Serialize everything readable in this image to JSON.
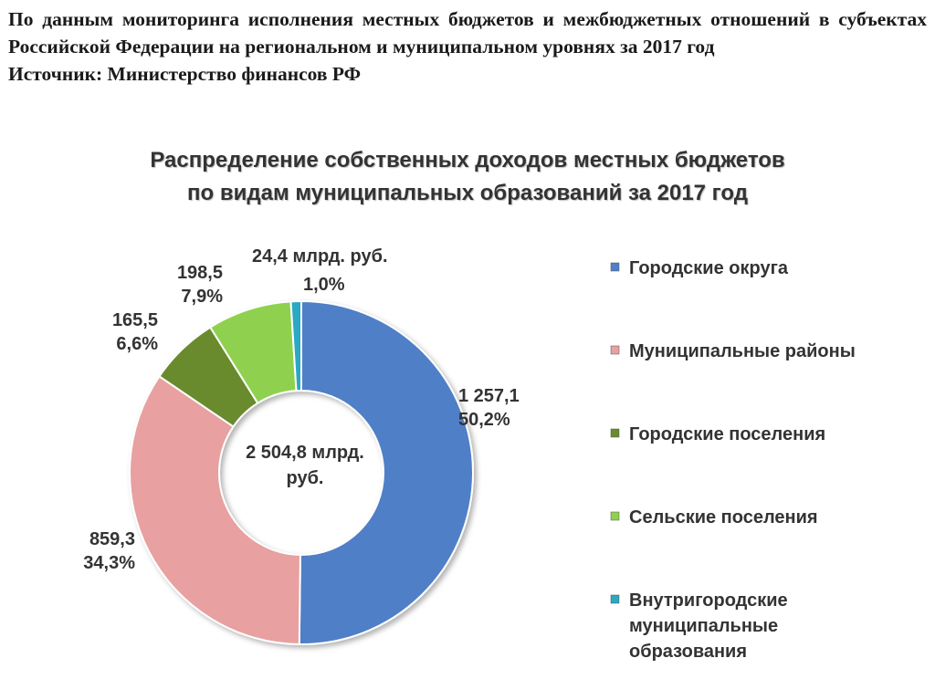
{
  "header": {
    "intro": "По данным мониторинга исполнения местных бюджетов и межбюджетных отношений в субъектах Российской Федерации на региональном и муниципальном уровнях за 2017 год",
    "source": "Источник: Министерство финансов РФ"
  },
  "chart_data": {
    "type": "pie",
    "title_lines": [
      "Распределение собственных доходов местных бюджетов",
      "по видам муниципальных образований за 2017 год"
    ],
    "center_text_lines": [
      "2 504,8 млрд.",
      "руб."
    ],
    "legend_position": "right",
    "slices": [
      {
        "name": "Городские округа",
        "value": 1257.1,
        "value_label": "1 257,1",
        "percent": 50.2,
        "percent_label": "50,2%",
        "color": "#4f7fc6"
      },
      {
        "name": "Муниципальные районы",
        "value": 859.3,
        "value_label": "859,3",
        "percent": 34.3,
        "percent_label": "34,3%",
        "color": "#e8a0a0"
      },
      {
        "name": "Городские поселения",
        "value": 165.5,
        "value_label": "165,5",
        "percent": 6.6,
        "percent_label": "6,6%",
        "color": "#6b8a2e"
      },
      {
        "name": "Сельские поселения",
        "value": 198.5,
        "value_label": "198,5",
        "percent": 7.9,
        "percent_label": "7,9%",
        "color": "#8fd14f"
      },
      {
        "name": "Внутригородские муниципальные образования",
        "value": 24.4,
        "value_label": "24,4 млрд. руб.",
        "percent": 1.0,
        "percent_label": "1,0%",
        "color": "#2aa8c4"
      }
    ],
    "legend_lines": [
      [
        "Городские округа"
      ],
      [
        "Муниципальные районы"
      ],
      [
        "Городские поселения"
      ],
      [
        "Сельские поселения"
      ],
      [
        "Внутригородские",
        "муниципальные",
        "образования"
      ]
    ]
  }
}
